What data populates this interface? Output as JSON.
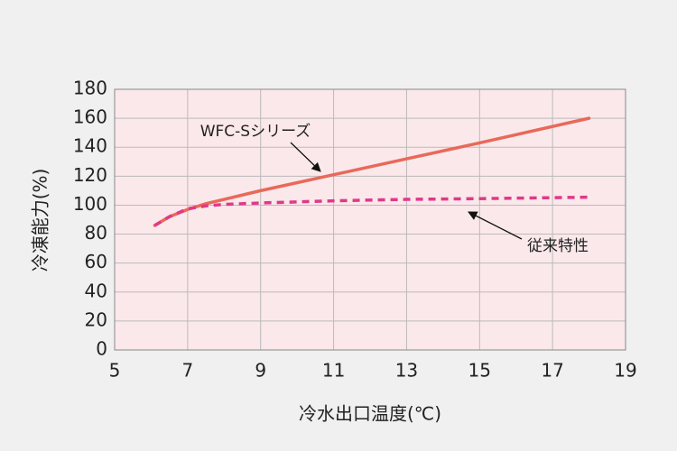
{
  "chart_data": {
    "type": "line",
    "x_label": "冷水出口温度(℃)",
    "y_label": "冷凍能力(%)",
    "x": [
      6.1,
      6.5,
      7,
      7.5,
      8,
      9,
      11,
      13,
      15,
      18
    ],
    "series": [
      {
        "name": "WFC-Sシリーズ",
        "color": "#e8695a",
        "dash": false,
        "values": [
          86,
          92,
          97,
          101,
          104,
          110,
          121,
          132,
          143,
          160
        ]
      },
      {
        "name": "従来特性",
        "color": "#e0388a",
        "dash": true,
        "values": [
          86,
          92,
          97.5,
          99.5,
          100.5,
          101.5,
          103,
          104,
          104.5,
          105.5
        ]
      }
    ],
    "xlim": [
      5,
      19
    ],
    "xticks": [
      5,
      7,
      9,
      11,
      13,
      15,
      17,
      19
    ],
    "ylim": [
      0,
      180
    ],
    "yticks": [
      0,
      20,
      40,
      60,
      80,
      100,
      120,
      140,
      160,
      180
    ],
    "grid": true,
    "plot_background": "#fbe8ea"
  }
}
